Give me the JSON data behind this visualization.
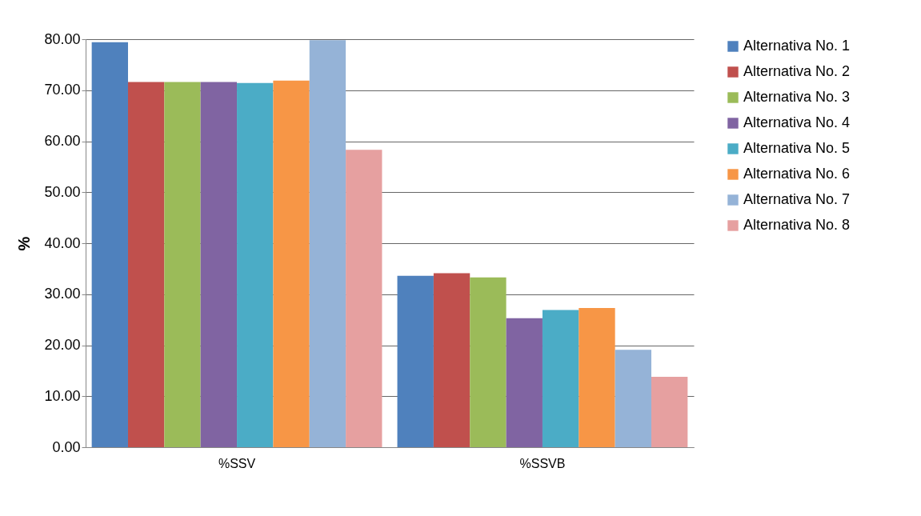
{
  "chart_data": {
    "type": "bar",
    "ylabel": "%",
    "categories": [
      "%SSV",
      "%SSVB"
    ],
    "series": [
      {
        "name": "Alternativa No. 1",
        "color": "#4f81bd",
        "values": [
          79.4,
          33.6
        ]
      },
      {
        "name": "Alternativa No. 2",
        "color": "#c0504d",
        "values": [
          71.6,
          34.1
        ]
      },
      {
        "name": "Alternativa No. 3",
        "color": "#9bbb59",
        "values": [
          71.6,
          33.3
        ]
      },
      {
        "name": "Alternativa No. 4",
        "color": "#8064a2",
        "values": [
          71.6,
          25.3
        ]
      },
      {
        "name": "Alternativa No. 5",
        "color": "#4bacc6",
        "values": [
          71.4,
          26.9
        ]
      },
      {
        "name": "Alternativa No. 6",
        "color": "#f79646",
        "values": [
          71.9,
          27.3
        ]
      },
      {
        "name": "Alternativa No. 7",
        "color": "#95b3d7",
        "values": [
          79.8,
          19.1
        ]
      },
      {
        "name": "Alternativa No. 8",
        "color": "#e6a0a0",
        "values": [
          58.3,
          13.8
        ]
      }
    ],
    "ylim": [
      0,
      80
    ],
    "yticks": [
      {
        "value": 0,
        "label": "0.00"
      },
      {
        "value": 10,
        "label": "10.00"
      },
      {
        "value": 20,
        "label": "20.00"
      },
      {
        "value": 30,
        "label": "30.00"
      },
      {
        "value": 40,
        "label": "40.00"
      },
      {
        "value": 50,
        "label": "50.00"
      },
      {
        "value": 60,
        "label": "60.00"
      },
      {
        "value": 70,
        "label": "70.00"
      },
      {
        "value": 80,
        "label": "80.00"
      }
    ],
    "grid": "y",
    "legend": "right"
  }
}
